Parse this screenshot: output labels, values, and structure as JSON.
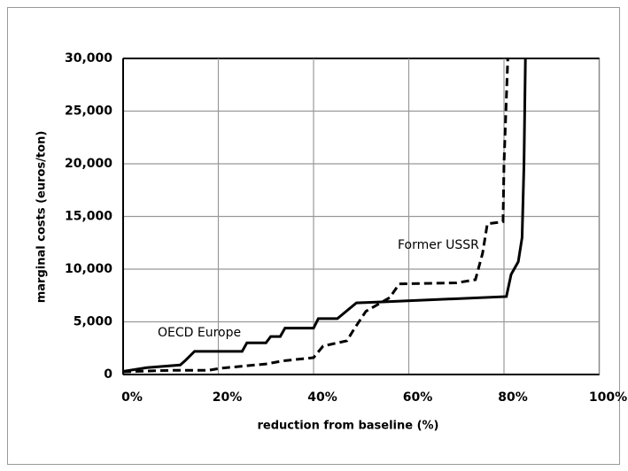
{
  "chart_data": {
    "type": "line",
    "x_label": "reduction from baseline (%)",
    "y_label": "marginal costs (euros/ton)",
    "xlim": [
      0,
      100
    ],
    "xticks": [
      {
        "value": 0,
        "label": "0%"
      },
      {
        "value": 20,
        "label": "20%"
      },
      {
        "value": 40,
        "label": "40%"
      },
      {
        "value": 60,
        "label": "60%"
      },
      {
        "value": 80,
        "label": "80%"
      },
      {
        "value": 100,
        "label": "100%"
      }
    ],
    "ylim": [
      0,
      30000
    ],
    "yticks": [
      0,
      {
        "value": 5000,
        "label": "5,000"
      },
      {
        "value": 10000,
        "label": "10,000"
      },
      {
        "value": 15000,
        "label": "15,000"
      },
      {
        "value": 20000,
        "label": "20,000"
      },
      {
        "value": 25000,
        "label": "25,000"
      },
      {
        "value": 30000,
        "label": "30,000"
      }
    ],
    "grid": true,
    "series": [
      {
        "name": "OECD Europe",
        "color": "#000000",
        "dash": false,
        "x": [
          0,
          5,
          12,
          13,
          15,
          25,
          26,
          30,
          31,
          33,
          34,
          40,
          41,
          45,
          49,
          55,
          80.5,
          81.5,
          83,
          83.8,
          84.2,
          84.5
        ],
        "values": [
          300,
          650,
          900,
          1300,
          2200,
          2200,
          3000,
          3000,
          3600,
          3600,
          4400,
          4400,
          5300,
          5300,
          6800,
          6900,
          7400,
          9500,
          10700,
          13000,
          20000,
          30000
        ]
      },
      {
        "name": "Former USSR",
        "color": "#000000",
        "dash": true,
        "x": [
          0,
          10,
          18,
          20.6,
          30,
          33.7,
          40,
          42,
          47,
          48.5,
          51,
          56,
          58,
          70,
          74,
          75.5,
          76.5,
          79.8,
          80,
          80.8
        ],
        "values": [
          250,
          400,
          400,
          600,
          1000,
          1300,
          1600,
          2700,
          3200,
          4300,
          6000,
          7300,
          8600,
          8700,
          9000,
          11500,
          14300,
          14500,
          20000,
          30000
        ]
      }
    ]
  }
}
